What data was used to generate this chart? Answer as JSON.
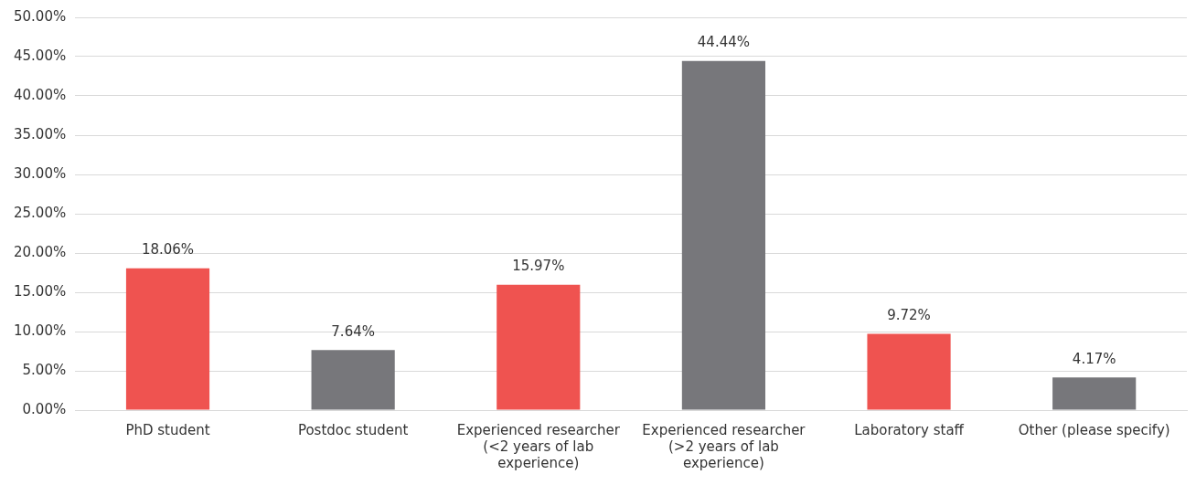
{
  "chart_data": {
    "type": "bar",
    "categories": [
      "PhD student",
      "Postdoc student",
      "Experienced researcher (<2 years of lab experience)",
      "Experienced researcher (>2 years of lab experience)",
      "Laboratory staff",
      "Other (please specify)"
    ],
    "values": [
      18.06,
      7.64,
      15.97,
      44.44,
      9.72,
      4.17
    ],
    "colors": [
      "#ef5350",
      "#77777b",
      "#ef5350",
      "#77777b",
      "#ef5350",
      "#77777b"
    ],
    "value_labels": [
      "18.06%",
      "7.64%",
      "15.97%",
      "44.44%",
      "9.72%",
      "4.17%"
    ],
    "ylim": [
      0,
      50
    ],
    "yticks": [
      {
        "value": 0,
        "label": "0.00%"
      },
      {
        "value": 5,
        "label": "5.00%"
      },
      {
        "value": 10,
        "label": "10.00%"
      },
      {
        "value": 15,
        "label": "15.00%"
      },
      {
        "value": 20,
        "label": "20.00%"
      },
      {
        "value": 25,
        "label": "25.00%"
      },
      {
        "value": 30,
        "label": "30.00%"
      },
      {
        "value": 35,
        "label": "35.00%"
      },
      {
        "value": 40,
        "label": "40.00%"
      },
      {
        "value": 45,
        "label": "45.00%"
      },
      {
        "value": 50,
        "label": "50.00%"
      }
    ],
    "grid": "y",
    "legend": false
  }
}
